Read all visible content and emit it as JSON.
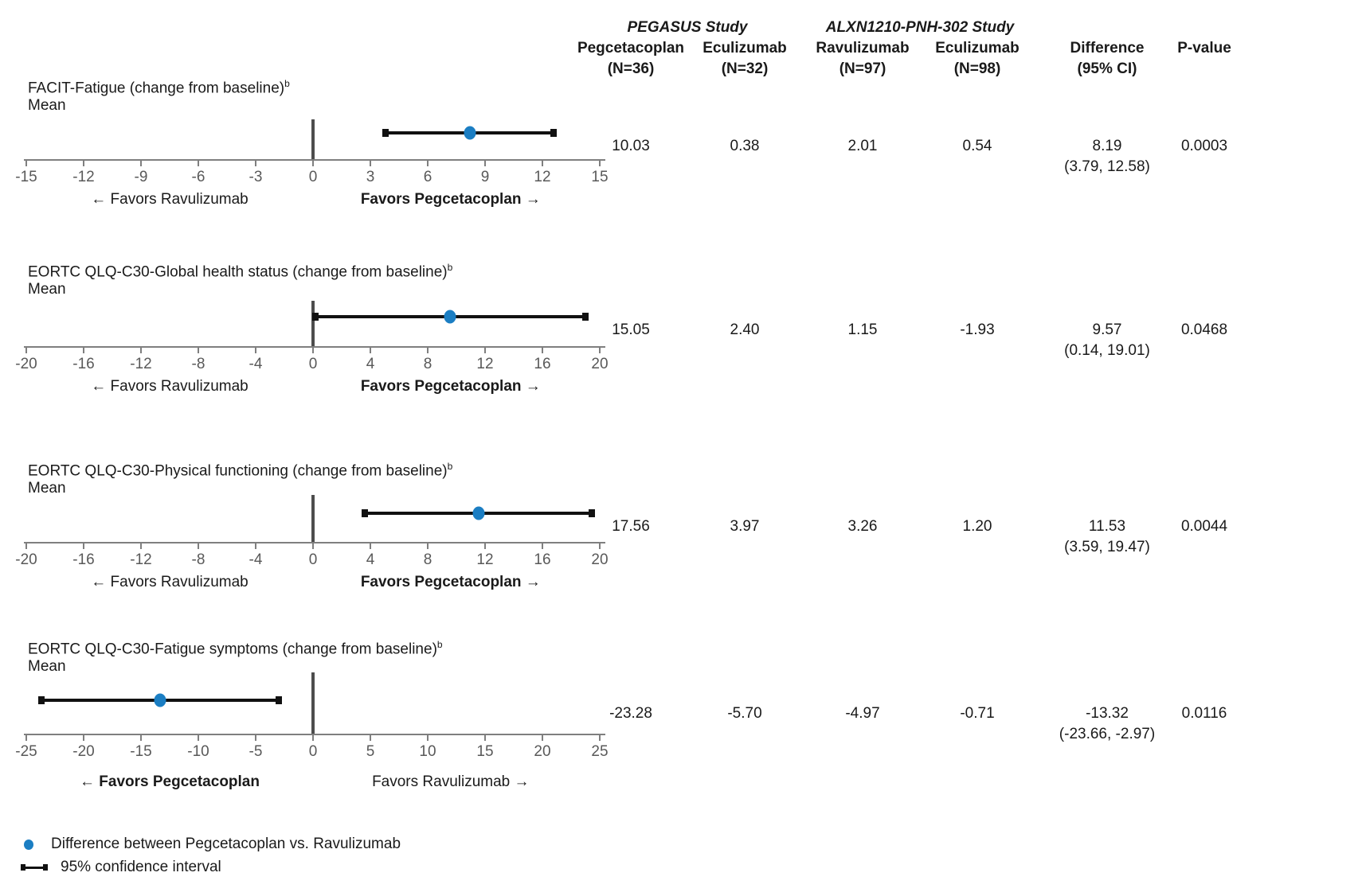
{
  "figure_name": "Forest plot of quality-of-life outcomes",
  "colors": {
    "point_blue": "#1b7ec3",
    "ci_black": "#111111",
    "axis_gray": "#7f7f7f",
    "zero_line_gray": "#4d4d4d",
    "tick_label_gray": "#595959",
    "text": "#1a1a1a"
  },
  "chart_data": [
    {
      "type": "scatter",
      "title": "FACIT-Fatigue (change from baseline)",
      "title_superscript": "b",
      "subtitle": "Mean",
      "point": 8.19,
      "ci_low": 3.79,
      "ci_high": 12.58,
      "xlim": [
        -15,
        15
      ],
      "xticks": [
        "-15",
        "-12",
        "-9",
        "-6",
        "-3",
        "0",
        "3",
        "6",
        "9",
        "12",
        "15"
      ],
      "favors_left": "← Favors Ravulizumab",
      "favors_right": "Favors Pegcetacoplan →",
      "favors_bold": "right"
    },
    {
      "type": "scatter",
      "title": "EORTC QLQ-C30-Global health status (change from baseline)",
      "title_superscript": "b",
      "subtitle": "Mean",
      "point": 9.57,
      "ci_low": 0.14,
      "ci_high": 19.01,
      "xlim": [
        -20,
        20
      ],
      "xticks": [
        "-20",
        "-16",
        "-12",
        "-8",
        "-4",
        "0",
        "4",
        "8",
        "12",
        "16",
        "20"
      ],
      "favors_left": "← Favors Ravulizumab",
      "favors_right": "Favors Pegcetacoplan →",
      "favors_bold": "right"
    },
    {
      "type": "scatter",
      "title": "EORTC QLQ-C30-Physical functioning (change from baseline)",
      "title_superscript": "b",
      "subtitle": "Mean",
      "point": 11.53,
      "ci_low": 3.59,
      "ci_high": 19.47,
      "xlim": [
        -20,
        20
      ],
      "xticks": [
        "-20",
        "-16",
        "-12",
        "-8",
        "-4",
        "0",
        "4",
        "8",
        "12",
        "16",
        "20"
      ],
      "favors_left": "← Favors Ravulizumab",
      "favors_right": "Favors Pegcetacoplan →",
      "favors_bold": "right"
    },
    {
      "type": "scatter",
      "title": "EORTC QLQ-C30-Fatigue symptoms (change from baseline)",
      "title_superscript": "b",
      "subtitle": "Mean",
      "point": -13.32,
      "ci_low": -23.66,
      "ci_high": -2.97,
      "xlim": [
        -25,
        25
      ],
      "xticks": [
        "-25",
        "-20",
        "-15",
        "-10",
        "-5",
        "0",
        "5",
        "10",
        "15",
        "20",
        "25"
      ],
      "favors_left": "← Favors Pegcetacoplan",
      "favors_right": "Favors Ravulizumab →",
      "favors_bold": "left"
    },
    {
      "type": "table",
      "group_headers": [
        {
          "label": "PEGASUS Study"
        },
        {
          "label": "ALXN1210-PNH-302 Study"
        }
      ],
      "columns": [
        {
          "l1": "Pegcetacoplan",
          "l2": "(N=36)"
        },
        {
          "l1": "Eculizumab",
          "l2": "(N=32)"
        },
        {
          "l1": "Ravulizumab",
          "l2": "(N=97)"
        },
        {
          "l1": "Eculizumab",
          "l2": "(N=98)"
        },
        {
          "l1": "Difference",
          "l2": "(95% CI)"
        },
        {
          "l1": "P-value",
          "l2": ""
        }
      ],
      "rows": [
        {
          "cells": [
            "10.03",
            "0.38",
            "2.01",
            "0.54"
          ],
          "difference": "8.19",
          "difference_ci": "(3.79, 12.58)",
          "p": "0.0003"
        },
        {
          "cells": [
            "15.05",
            "2.40",
            "1.15",
            "-1.93"
          ],
          "difference": "9.57",
          "difference_ci": "(0.14, 19.01)",
          "p": "0.0468"
        },
        {
          "cells": [
            "17.56",
            "3.97",
            "3.26",
            "1.20"
          ],
          "difference": "11.53",
          "difference_ci": "(3.59, 19.47)",
          "p": "0.0044"
        },
        {
          "cells": [
            "-23.28",
            "-5.70",
            "-4.97",
            "-0.71"
          ],
          "difference": "-13.32",
          "difference_ci": "(-23.66, -2.97)",
          "p": "0.0116"
        }
      ]
    }
  ],
  "legend": {
    "items": [
      {
        "marker": "point",
        "label": "Difference between Pegcetacoplan vs. Ravulizumab"
      },
      {
        "marker": "ci",
        "label": "95% confidence interval"
      }
    ]
  }
}
